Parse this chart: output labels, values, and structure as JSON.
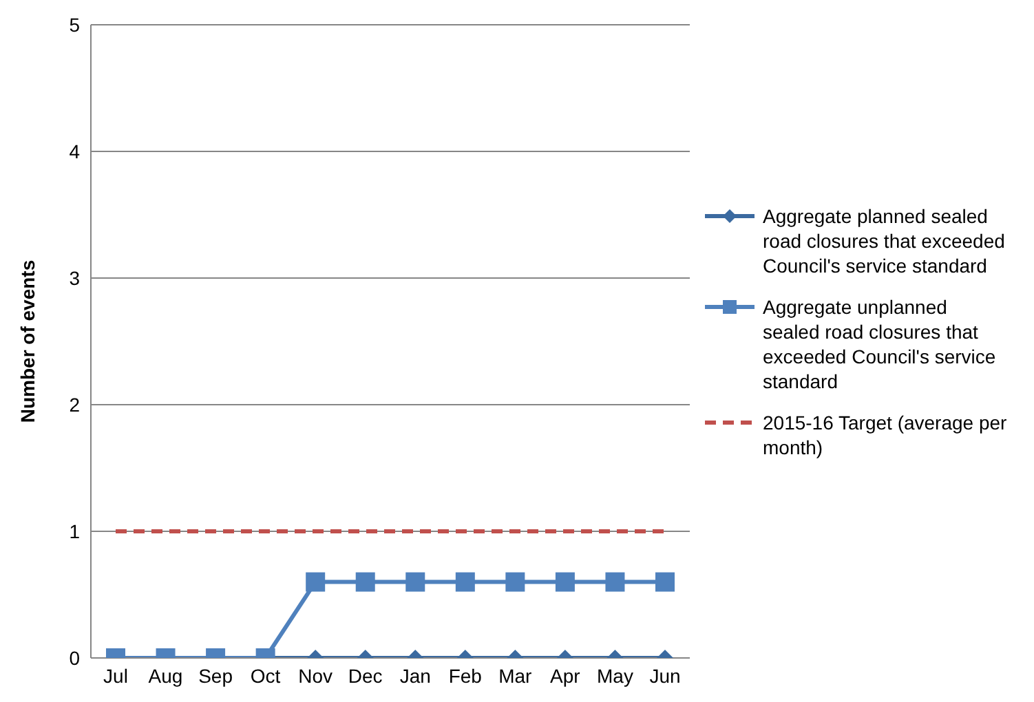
{
  "chart_data": {
    "type": "line",
    "ylabel": "Number of events",
    "categories": [
      "Jul",
      "Aug",
      "Sep",
      "Oct",
      "Nov",
      "Dec",
      "Jan",
      "Feb",
      "Mar",
      "Apr",
      "May",
      "Jun"
    ],
    "series": [
      {
        "name": "Aggregate planned sealed road closures that exceeded Council's service standard",
        "color": "#3b6aa0",
        "marker": "diamond",
        "values": [
          0,
          0,
          0,
          0,
          0,
          0,
          0,
          0,
          0,
          0,
          0,
          0
        ]
      },
      {
        "name": "Aggregate unplanned sealed road closures that exceeded Council's service standard",
        "color": "#4f81bd",
        "marker": "square",
        "values": [
          0,
          0,
          0,
          0,
          0.6,
          0.6,
          0.6,
          0.6,
          0.6,
          0.6,
          0.6,
          0.6
        ]
      },
      {
        "name": "2015-16 Target (average per month)",
        "color": "#c0504d",
        "marker": "none",
        "line_style": "dashed",
        "values": [
          1,
          1,
          1,
          1,
          1,
          1,
          1,
          1,
          1,
          1,
          1,
          1
        ]
      }
    ],
    "ylim": [
      0,
      5
    ],
    "yticks": [
      0,
      1,
      2,
      3,
      4,
      5
    ],
    "grid": "y",
    "legend": "right"
  }
}
